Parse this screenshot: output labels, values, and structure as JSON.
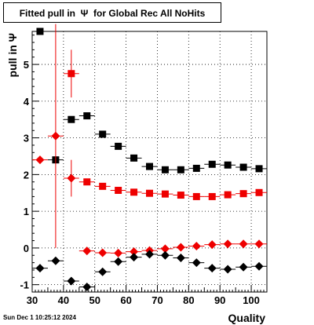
{
  "title": "Fitted pull in  Ψ  for Global Rec All NoHits",
  "timestamp": "Sun Dec  1 10:25:12 2024",
  "chart_data": {
    "type": "scatter",
    "title": "Fitted pull in  Ψ  for Global Rec All NoHits",
    "xlabel": "Quality",
    "ylabel": "pull in  Ψ",
    "xlim": [
      30,
      105
    ],
    "ylim": [
      -1.2,
      5.9
    ],
    "x_ticks": [
      30,
      40,
      50,
      60,
      70,
      80,
      90,
      100
    ],
    "y_ticks": [
      -1,
      0,
      1,
      2,
      3,
      4,
      5
    ],
    "grid": true,
    "colors": {
      "black": "#000000",
      "red": "#ee0000"
    },
    "series": [
      {
        "marker": "square",
        "color": "#000000",
        "points": [
          {
            "x": 32.5,
            "y": 5.9
          },
          {
            "x": 37.5,
            "y": 2.4
          },
          {
            "x": 42.5,
            "y": 3.5
          },
          {
            "x": 47.5,
            "y": 3.6
          },
          {
            "x": 52.5,
            "y": 3.1
          },
          {
            "x": 57.5,
            "y": 2.77
          },
          {
            "x": 62.5,
            "y": 2.45
          },
          {
            "x": 67.5,
            "y": 2.22
          },
          {
            "x": 72.5,
            "y": 2.13
          },
          {
            "x": 77.5,
            "y": 2.13
          },
          {
            "x": 82.5,
            "y": 2.17
          },
          {
            "x": 87.5,
            "y": 2.28
          },
          {
            "x": 92.5,
            "y": 2.26
          },
          {
            "x": 97.5,
            "y": 2.2
          },
          {
            "x": 102.5,
            "y": 2.16
          }
        ]
      },
      {
        "marker": "square",
        "color": "#ee0000",
        "points": [
          {
            "x": 42.5,
            "y": 4.75,
            "err": 0.65
          },
          {
            "x": 47.5,
            "y": 1.8
          },
          {
            "x": 52.5,
            "y": 1.68
          },
          {
            "x": 57.5,
            "y": 1.57
          },
          {
            "x": 62.5,
            "y": 1.52
          },
          {
            "x": 67.5,
            "y": 1.49
          },
          {
            "x": 72.5,
            "y": 1.47
          },
          {
            "x": 77.5,
            "y": 1.44
          },
          {
            "x": 82.5,
            "y": 1.4
          },
          {
            "x": 87.5,
            "y": 1.4
          },
          {
            "x": 92.5,
            "y": 1.45
          },
          {
            "x": 97.5,
            "y": 1.48
          },
          {
            "x": 102.5,
            "y": 1.51
          }
        ]
      },
      {
        "marker": "diamond",
        "color": "#ee0000",
        "points": [
          {
            "x": 32.5,
            "y": 2.4
          },
          {
            "x": 37.5,
            "y": 3.05,
            "err": 3.05
          },
          {
            "x": 42.5,
            "y": 1.9,
            "err": 0.5
          },
          {
            "x": 47.5,
            "y": -0.08
          },
          {
            "x": 52.5,
            "y": -0.13
          },
          {
            "x": 57.5,
            "y": -0.14
          },
          {
            "x": 62.5,
            "y": -0.1
          },
          {
            "x": 67.5,
            "y": -0.07
          },
          {
            "x": 72.5,
            "y": -0.02
          },
          {
            "x": 77.5,
            "y": 0.02
          },
          {
            "x": 82.5,
            "y": 0.05
          },
          {
            "x": 87.5,
            "y": 0.09
          },
          {
            "x": 92.5,
            "y": 0.11
          },
          {
            "x": 97.5,
            "y": 0.11
          },
          {
            "x": 102.5,
            "y": 0.11
          }
        ]
      },
      {
        "marker": "diamond",
        "color": "#000000",
        "points": [
          {
            "x": 32.5,
            "y": -0.55
          },
          {
            "x": 37.5,
            "y": -0.35
          },
          {
            "x": 42.5,
            "y": -0.9
          },
          {
            "x": 47.5,
            "y": -1.06
          },
          {
            "x": 52.5,
            "y": -0.65
          },
          {
            "x": 57.5,
            "y": -0.37
          },
          {
            "x": 62.5,
            "y": -0.25
          },
          {
            "x": 67.5,
            "y": -0.17
          },
          {
            "x": 72.5,
            "y": -0.2
          },
          {
            "x": 77.5,
            "y": -0.27
          },
          {
            "x": 82.5,
            "y": -0.4
          },
          {
            "x": 87.5,
            "y": -0.55
          },
          {
            "x": 92.5,
            "y": -0.58
          },
          {
            "x": 97.5,
            "y": -0.52
          },
          {
            "x": 102.5,
            "y": -0.5
          }
        ]
      }
    ]
  }
}
